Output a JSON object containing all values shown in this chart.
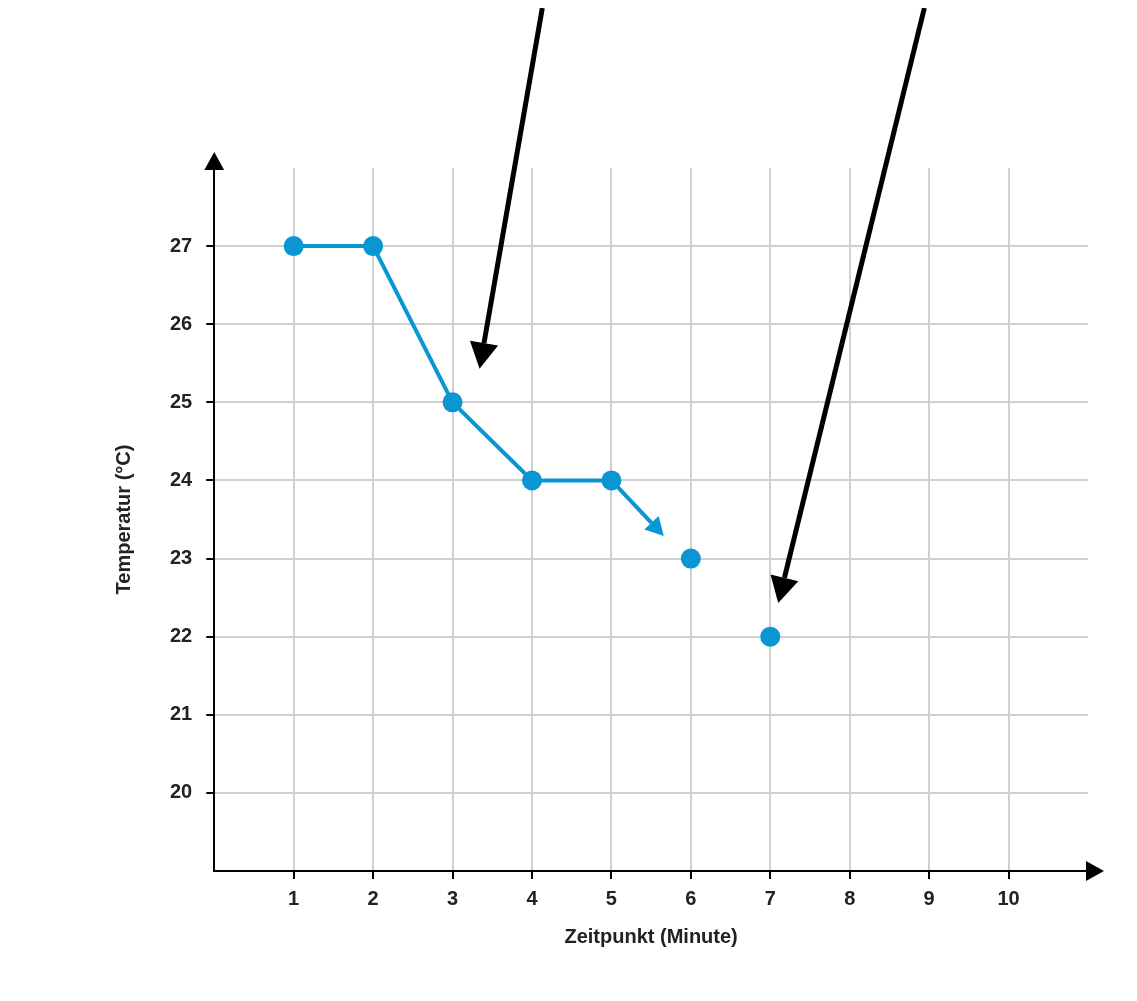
{
  "chart_data": {
    "type": "line",
    "xlabel": "Zeitpunkt (Minute)",
    "ylabel": "Temperatur (°C)",
    "series": [
      {
        "type": "line",
        "color": "#0a96d2",
        "x": [
          1,
          2,
          3,
          4,
          5
        ],
        "values": [
          27,
          27,
          25,
          24,
          24
        ]
      },
      {
        "type": "scatter",
        "color": "#0a96d2",
        "x": [
          6,
          7
        ],
        "values": [
          23,
          22
        ]
      }
    ],
    "xlim": [
      0,
      11
    ],
    "xticks": [
      1,
      2,
      3,
      4,
      5,
      6,
      7,
      8,
      9,
      10
    ],
    "ylim": [
      19,
      28
    ],
    "yticks": [
      20,
      21,
      22,
      23,
      24,
      25,
      26,
      27
    ],
    "grid": true,
    "marker": "circle",
    "line_style": "solid",
    "legend": false
  }
}
